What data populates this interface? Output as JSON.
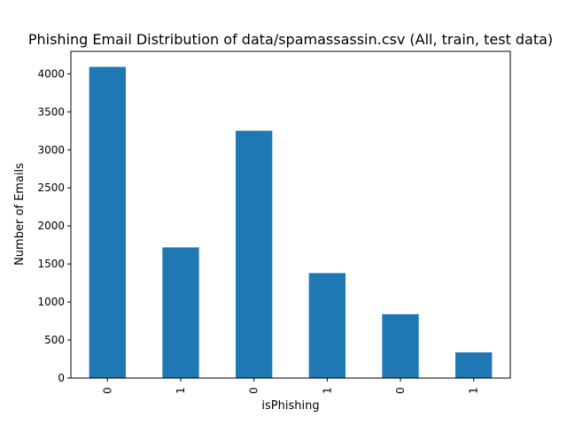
{
  "chart_data": {
    "type": "bar",
    "title": "Phishing Email Distribution of data/spamassassin.csv (All, train, test data)",
    "xlabel": "isPhishing",
    "ylabel": "Number of Emails",
    "categories": [
      "0",
      "1",
      "0",
      "1",
      "0",
      "1"
    ],
    "values": [
      4091,
      1718,
      3251,
      1380,
      840,
      338
    ],
    "ylim": [
      0,
      4295
    ],
    "yticks": [
      0,
      500,
      1000,
      1500,
      2000,
      2500,
      3000,
      3500,
      4000
    ],
    "ytick_labels": [
      "0",
      "500",
      "1000",
      "1500",
      "2000",
      "2500",
      "3000",
      "3500",
      "4000"
    ],
    "bar_color": "#1f77b4",
    "grid": false,
    "legend": "none"
  }
}
